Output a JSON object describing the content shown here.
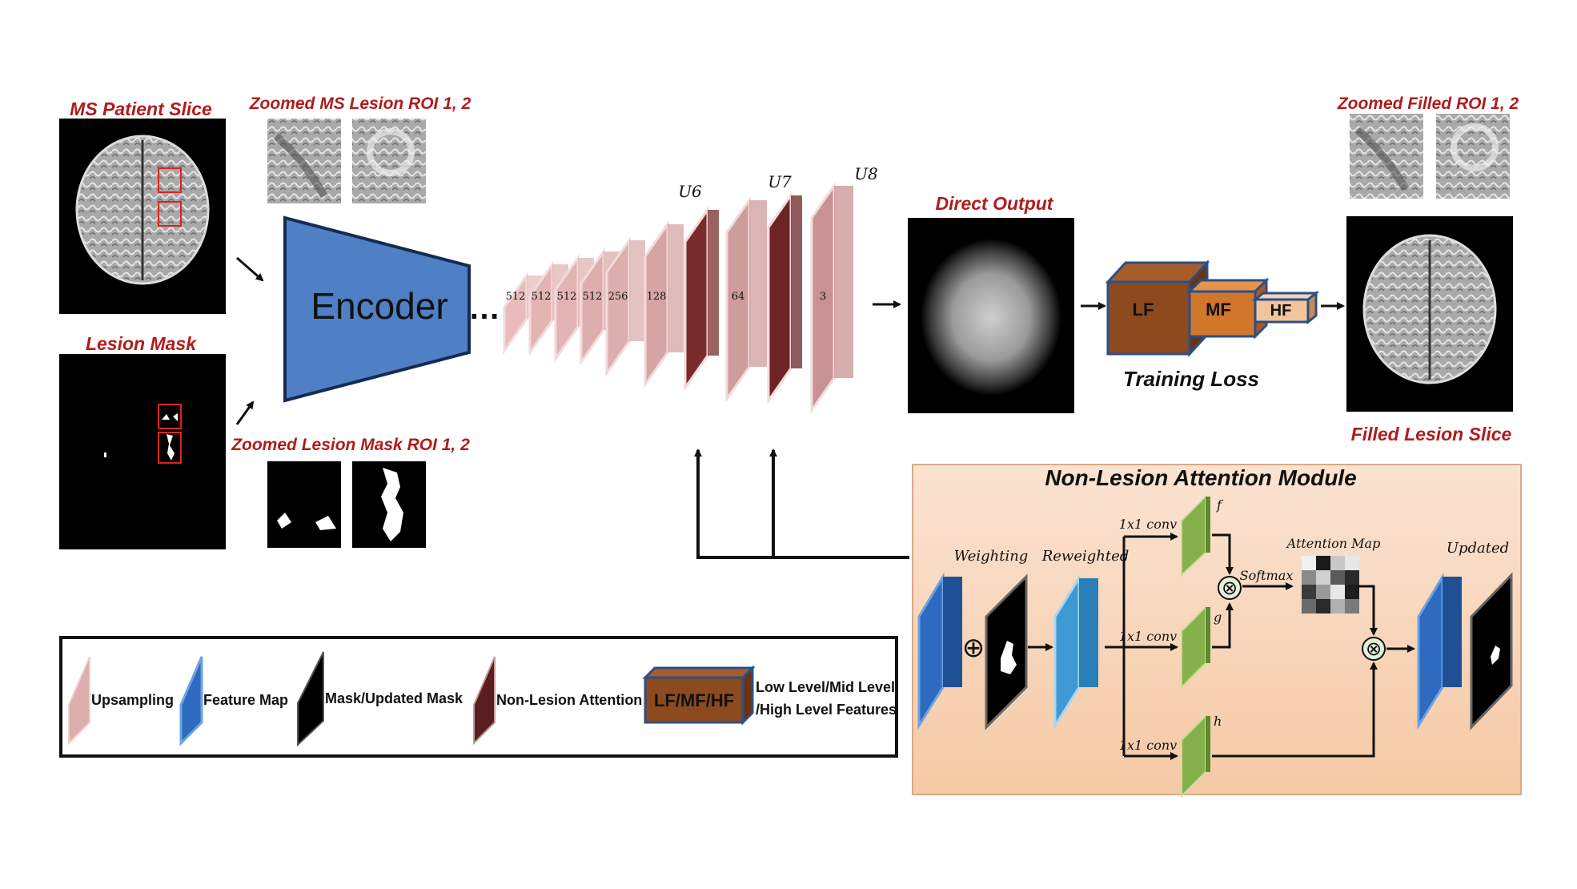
{
  "inputs": {
    "ms_patient_slice": "MS Patient Slice",
    "zoomed_ms_roi": "Zoomed MS Lesion ROI 1, 2",
    "lesion_mask": "Lesion Mask",
    "zoomed_mask_roi": "Zoomed Lesion Mask ROI 1, 2"
  },
  "encoder": {
    "label": "Encoder",
    "ellipsis": "…"
  },
  "decoder": {
    "channels": [
      "512",
      "512",
      "512",
      "512",
      "256",
      "128",
      "64",
      "3"
    ],
    "stage_labels": [
      "U6",
      "U7",
      "U8"
    ]
  },
  "output": {
    "direct_output": "Direct Output",
    "loss": {
      "lf": "LF",
      "mf": "MF",
      "hf": "HF",
      "label": "Training Loss"
    },
    "zoomed_filled_roi": "Zoomed Filled ROI 1, 2",
    "filled_slice": "Filled Lesion Slice"
  },
  "attention_module": {
    "title": "Non-Lesion Attention Module",
    "weighting": "Weighting",
    "reweighted": "Reweighted",
    "conv_labels": [
      "1x1 conv",
      "1x1 conv",
      "1x1 conv"
    ],
    "branch_labels": [
      "f",
      "g",
      "h"
    ],
    "softmax": "Softmax",
    "attention_map": "Attention Map",
    "updated": "Updated",
    "oplus": "⊕",
    "otimes": "⊗"
  },
  "legend": {
    "upsampling": "Upsampling",
    "feature_map": "Feature Map",
    "mask": "Mask/Updated Mask",
    "non_lesion_attention": "Non-Lesion Attention",
    "box_label": "LF/MF/HF",
    "levels_line1": "Low Level/Mid Level",
    "levels_line2": "/High Level Features"
  },
  "colors": {
    "label_red": "#b01c1c",
    "encoder_blue": "#4f7fc4",
    "upsampling_pink": "#dcaeae",
    "attention_dark": "#7a2c2c",
    "feature_blue": "#2e6bc0",
    "conv_green": "#86b04a",
    "loss_brown": "#8c4a1e",
    "loss_orange": "#d0772c",
    "loss_peach": "#f2c49a",
    "module_bg": "#f7d7bc"
  }
}
